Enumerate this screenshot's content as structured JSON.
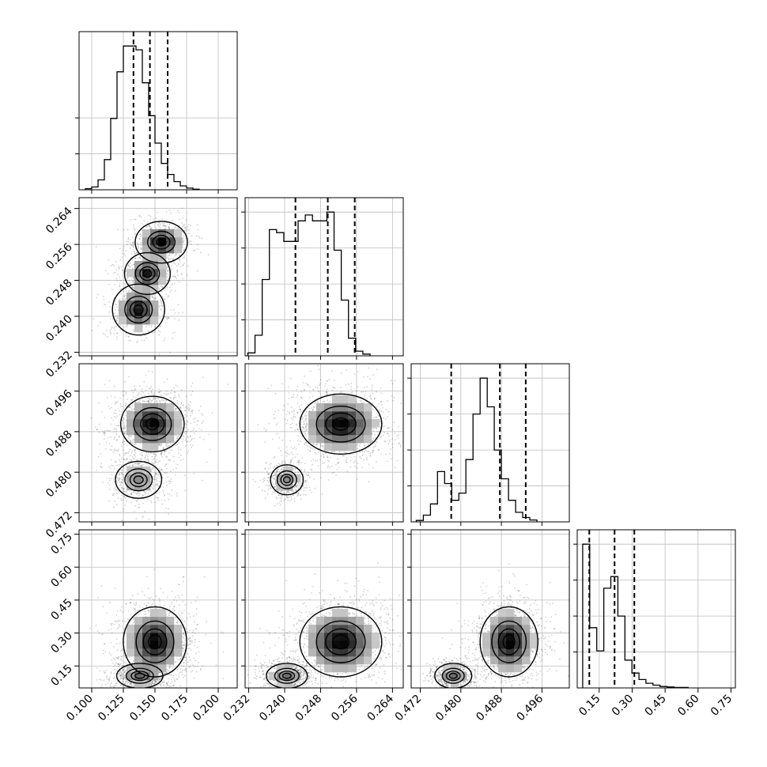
{
  "chart_data": {
    "type": "corner",
    "grid": true,
    "parameters": [
      {
        "range": [
          0.09,
          0.215
        ],
        "ticks": [
          "0.100",
          "0.125",
          "0.150",
          "0.175",
          "0.200"
        ],
        "tick_values": [
          0.1,
          0.125,
          0.15,
          0.175,
          0.2
        ]
      },
      {
        "range": [
          0.2312,
          0.2664
        ],
        "ticks": [
          "0.232",
          "0.240",
          "0.248",
          "0.256",
          "0.264"
        ],
        "tick_values": [
          0.232,
          0.24,
          0.248,
          0.256,
          0.264
        ]
      },
      {
        "range": [
          0.4702,
          0.5014
        ],
        "ticks": [
          "0.472",
          "0.480",
          "0.488",
          "0.496"
        ],
        "tick_values": [
          0.472,
          0.48,
          0.488,
          0.496
        ]
      },
      {
        "range": [
          0.05,
          0.77
        ],
        "ticks": [
          "0.15",
          "0.30",
          "0.45",
          "0.60",
          "0.75"
        ],
        "tick_values": [
          0.15,
          0.3,
          0.45,
          0.6,
          0.75
        ]
      }
    ],
    "histograms": [
      {
        "edges_start": 0.095,
        "bin_width": 0.005,
        "counts": [
          2,
          5,
          18,
          55,
          130,
          215,
          262,
          262,
          255,
          195,
          135,
          85,
          48,
          28,
          15,
          7,
          3,
          1
        ],
        "quantiles": [
          0.133,
          0.146,
          0.16
        ]
      },
      {
        "edges_start": 0.2318,
        "bin_width": 0.0016,
        "counts": [
          5,
          35,
          130,
          215,
          210,
          195,
          195,
          230,
          240,
          230,
          230,
          245,
          180,
          95,
          30,
          8,
          3
        ],
        "quantiles": [
          0.2424,
          0.2496,
          0.2556
        ]
      },
      {
        "edges_start": 0.4712,
        "bin_width": 0.0014,
        "counts": [
          6,
          28,
          75,
          210,
          160,
          90,
          120,
          260,
          450,
          600,
          480,
          300,
          180,
          90,
          40,
          18,
          8
        ],
        "quantiles": [
          0.4781,
          0.4877,
          0.4928
        ]
      },
      {
        "edges_start": 0.075,
        "bin_width": 0.032,
        "counts": [
          310,
          130,
          80,
          215,
          240,
          155,
          60,
          32,
          18,
          10,
          6,
          3,
          2,
          1,
          1
        ],
        "quantiles": [
          0.105,
          0.22,
          0.31
        ]
      }
    ],
    "joint_modes": {
      "0-1": [
        {
          "mean": [
            0.137,
            0.2415
          ],
          "sd": [
            0.008,
            0.0022
          ],
          "w": 0.33
        },
        {
          "mean": [
            0.144,
            0.2495
          ],
          "sd": [
            0.007,
            0.0018
          ],
          "w": 0.32
        },
        {
          "mean": [
            0.155,
            0.2565
          ],
          "sd": [
            0.008,
            0.0018
          ],
          "w": 0.35
        }
      ],
      "0-2": [
        {
          "mean": [
            0.137,
            0.4785
          ],
          "sd": [
            0.008,
            0.0016
          ],
          "w": 0.3
        },
        {
          "mean": [
            0.148,
            0.4895
          ],
          "sd": [
            0.011,
            0.0024
          ],
          "w": 0.7
        }
      ],
      "1-2": [
        {
          "mean": [
            0.2405,
            0.4785
          ],
          "sd": [
            0.0016,
            0.0013
          ],
          "w": 0.3
        },
        {
          "mean": [
            0.2525,
            0.4895
          ],
          "sd": [
            0.004,
            0.0026
          ],
          "w": 0.7
        }
      ],
      "0-3": [
        {
          "mean": [
            0.138,
            0.105
          ],
          "sd": [
            0.008,
            0.025
          ],
          "w": 0.35
        },
        {
          "mean": [
            0.15,
            0.26
          ],
          "sd": [
            0.011,
            0.07
          ],
          "w": 0.65
        }
      ],
      "1-3": [
        {
          "mean": [
            0.2405,
            0.105
          ],
          "sd": [
            0.002,
            0.025
          ],
          "w": 0.35
        },
        {
          "mean": [
            0.2525,
            0.26
          ],
          "sd": [
            0.004,
            0.07
          ],
          "w": 0.65
        }
      ],
      "2-3": [
        {
          "mean": [
            0.4785,
            0.105
          ],
          "sd": [
            0.0016,
            0.025
          ],
          "w": 0.35
        },
        {
          "mean": [
            0.4895,
            0.26
          ],
          "sd": [
            0.0025,
            0.07
          ],
          "w": 0.65
        }
      ]
    }
  }
}
